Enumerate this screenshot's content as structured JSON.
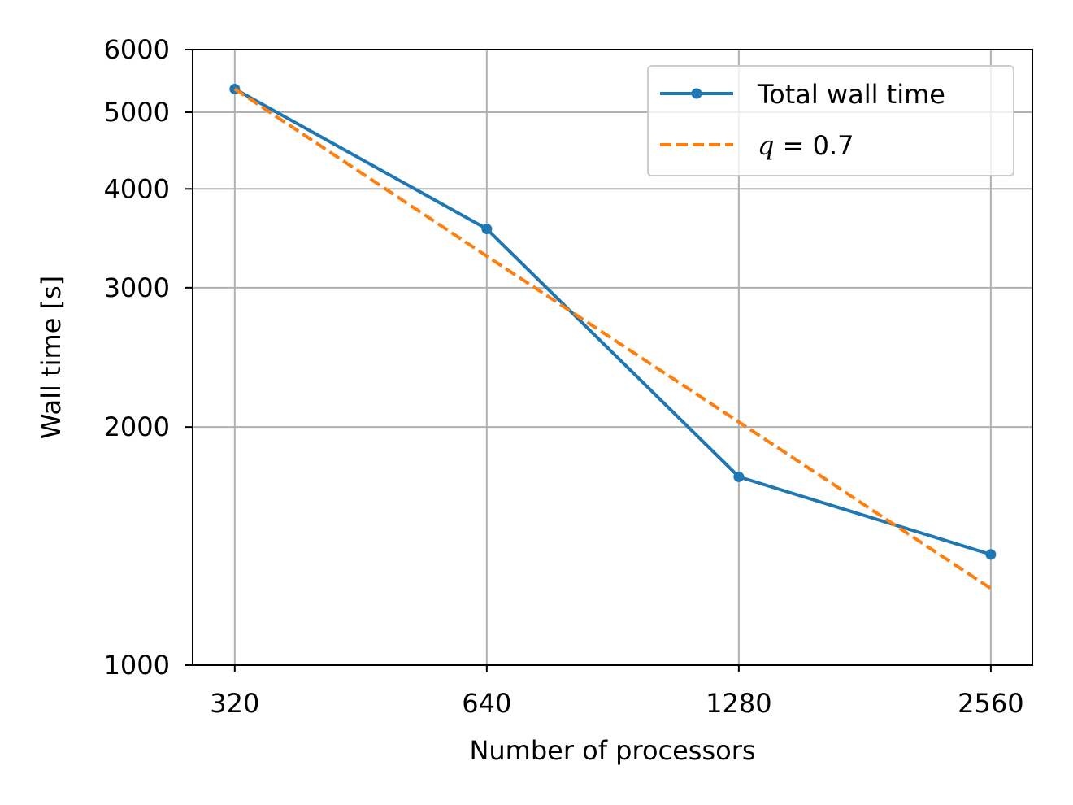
{
  "chart_data": {
    "type": "line",
    "xscale": "log2",
    "yscale": "log",
    "x": [
      320,
      640,
      1280,
      2560
    ],
    "xtick_labels": [
      "320",
      "640",
      "1280",
      "2560"
    ],
    "yticks": [
      1000,
      2000,
      3000,
      4000,
      5000,
      6000
    ],
    "ytick_labels": [
      "1000",
      "2000",
      "3000",
      "4000",
      "5000",
      "6000"
    ],
    "xlim": [
      285,
      2870
    ],
    "ylim": [
      1000,
      6000
    ],
    "xlabel": "Number of processors",
    "ylabel": "Wall time [s]",
    "grid": true,
    "legend_position": "top-right",
    "series": [
      {
        "name": "Total wall time",
        "style": "solid",
        "marker": "circle",
        "color": "#1f77b4",
        "x": [
          320,
          640,
          1280,
          2560
        ],
        "values": [
          5350,
          3560,
          1730,
          1380
        ]
      },
      {
        "name": "q = 0.7",
        "legend_math_symbol": "q",
        "legend_math_rest": " = 0.7",
        "style": "dashed",
        "marker": "none",
        "color": "#ff7f0e",
        "x": [
          320,
          640,
          1280,
          2560
        ],
        "values": [
          5350,
          3290,
          2030,
          1250
        ]
      }
    ]
  }
}
